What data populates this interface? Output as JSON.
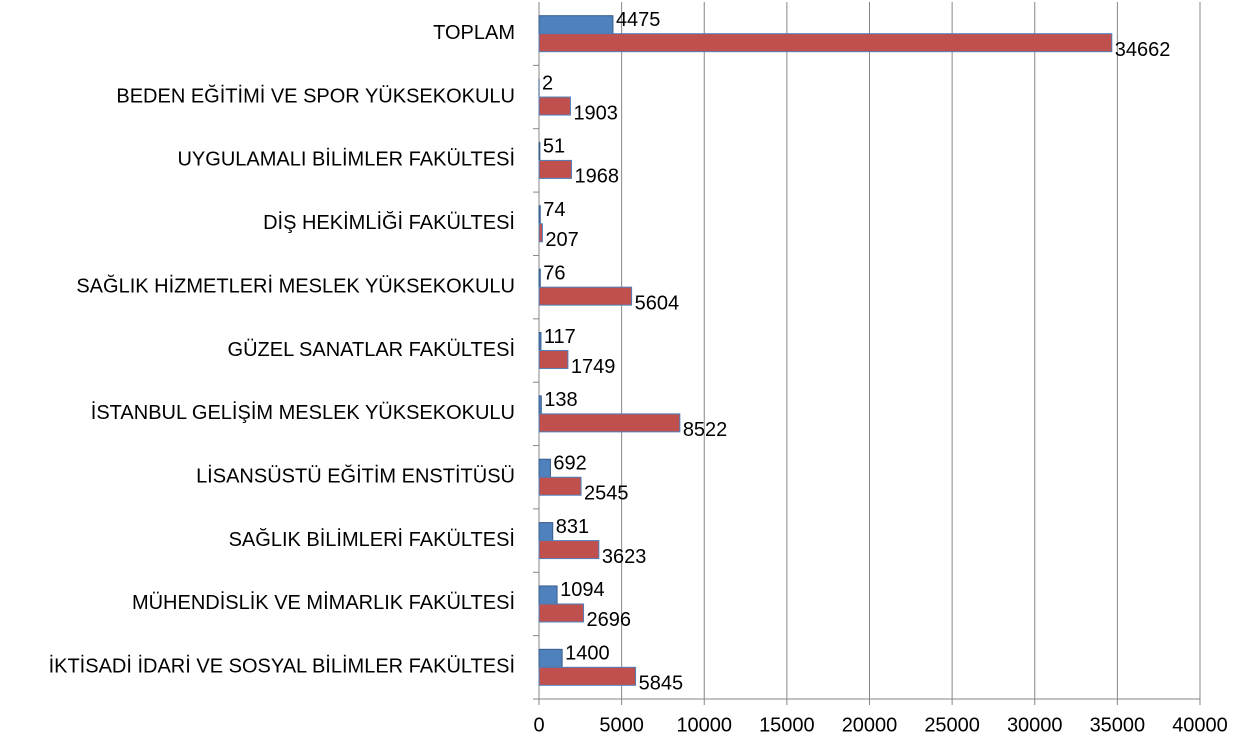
{
  "chart_data": {
    "type": "bar",
    "orientation": "horizontal",
    "categories": [
      "İKTİSADİ İDARİ VE SOSYAL BİLİMLER FAKÜLTESİ",
      "MÜHENDİSLİK VE MİMARLIK FAKÜLTESİ",
      "SAĞLIK BİLİMLERİ FAKÜLTESİ",
      "LİSANSÜSTÜ EĞİTİM ENSTİTÜSÜ",
      "İSTANBUL GELİŞİM MESLEK YÜKSEKOKULU",
      "GÜZEL SANATLAR FAKÜLTESİ",
      "SAĞLIK HİZMETLERİ MESLEK YÜKSEKOKULU",
      "DİŞ HEKİMLİĞİ FAKÜLTESİ",
      "UYGULAMALI BİLİMLER FAKÜLTESİ",
      "BEDEN EĞİTİMİ VE SPOR YÜKSEKOKULU",
      "TOPLAM"
    ],
    "series": [
      {
        "color": "#4f81bd",
        "values": [
          1400,
          1094,
          831,
          692,
          138,
          117,
          76,
          74,
          51,
          2,
          4475
        ]
      },
      {
        "color": "#c0504d",
        "values": [
          5845,
          2696,
          3623,
          2545,
          8522,
          1749,
          5604,
          207,
          1968,
          1903,
          34662
        ]
      }
    ],
    "xlim": [
      0,
      40000
    ],
    "xticks": [
      0,
      5000,
      10000,
      15000,
      20000,
      25000,
      30000,
      35000,
      40000
    ],
    "grid": true
  }
}
